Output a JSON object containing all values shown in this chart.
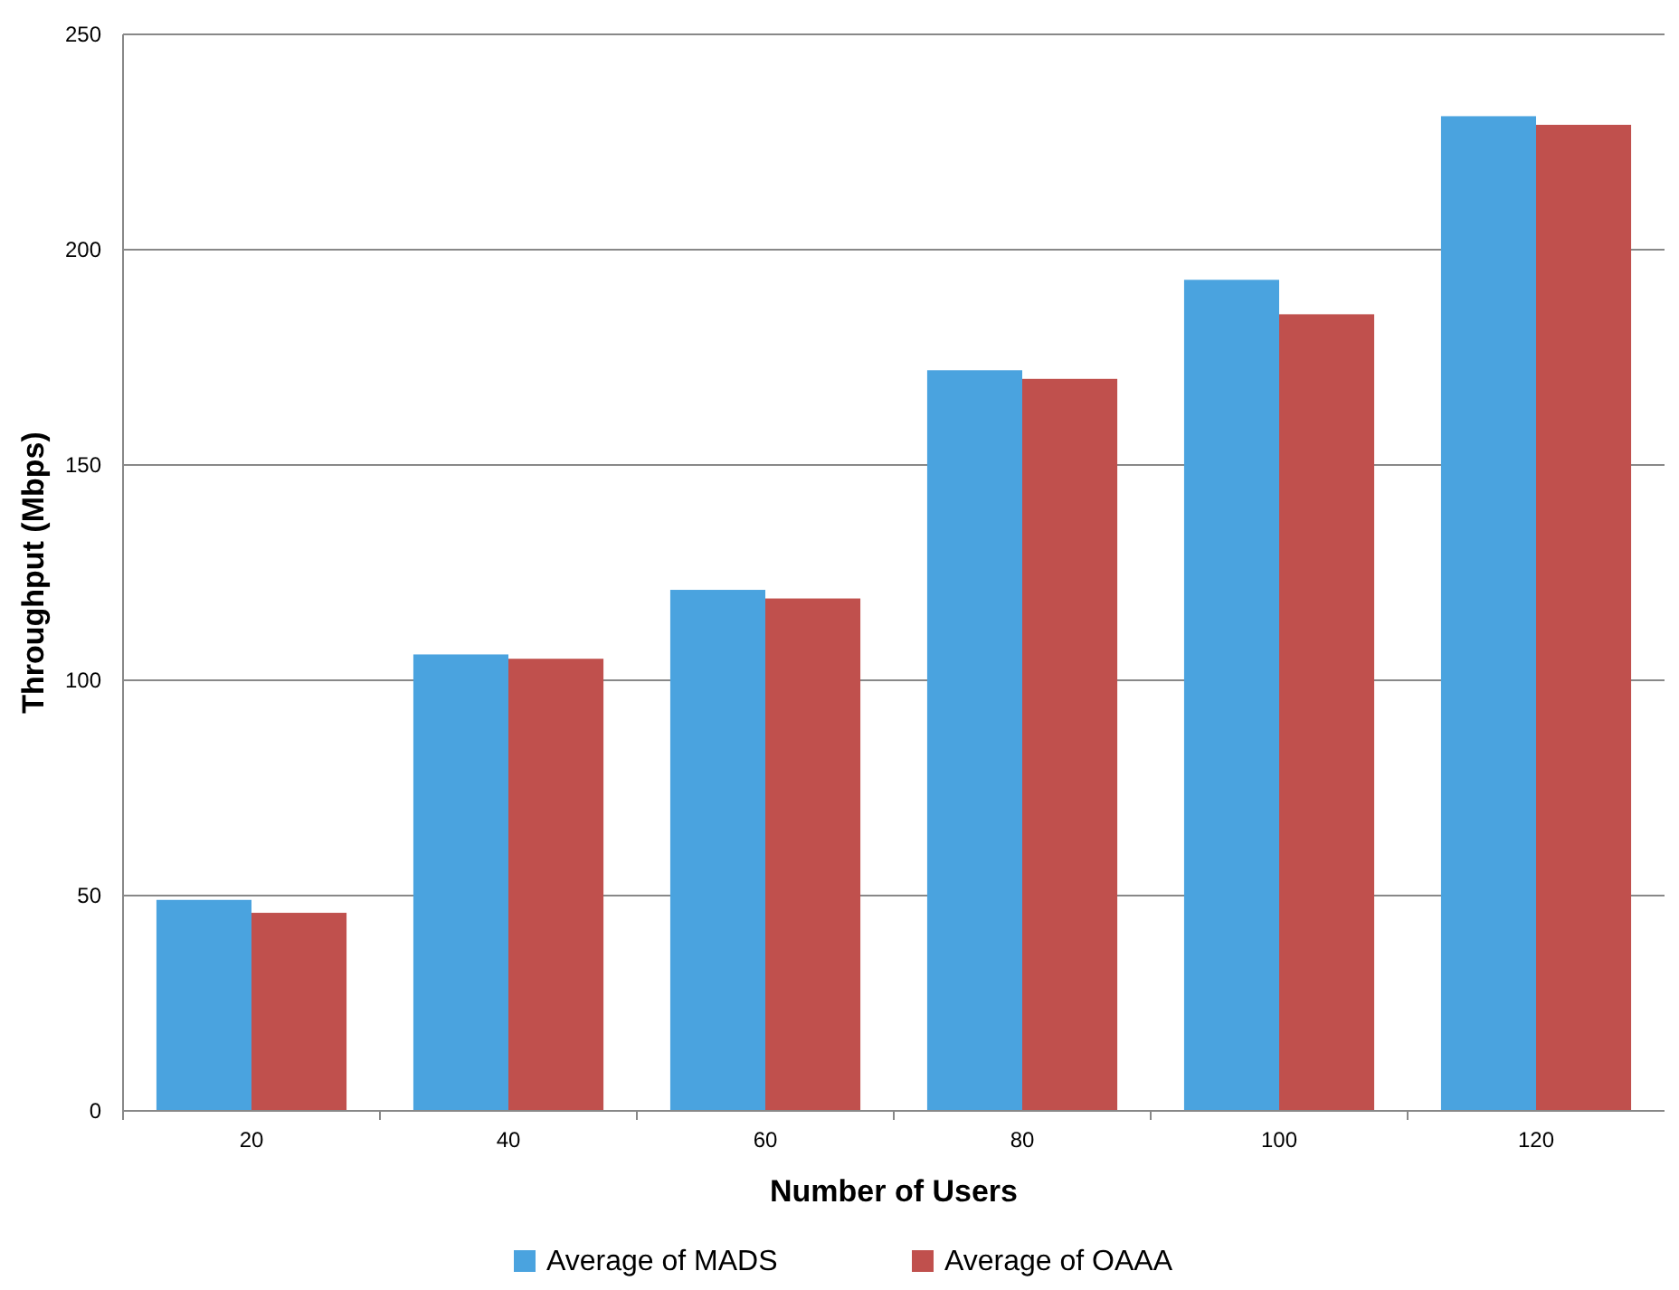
{
  "chart_data": {
    "type": "bar",
    "xlabel": "Number of Users",
    "ylabel": "Throughput (Mbps)",
    "categories": [
      "20",
      "40",
      "60",
      "80",
      "100",
      "120"
    ],
    "series": [
      {
        "name": "Average of MADS",
        "color": "#4aa3df",
        "values": [
          49,
          106,
          121,
          172,
          193,
          231
        ]
      },
      {
        "name": "Average of OAAA",
        "color": "#c0504d",
        "values": [
          46,
          105,
          119,
          170,
          185,
          229
        ]
      }
    ],
    "ylim": [
      0,
      250
    ],
    "yticks": [
      0,
      50,
      100,
      150,
      200,
      250
    ],
    "grid": "y",
    "legend": "bottom"
  }
}
